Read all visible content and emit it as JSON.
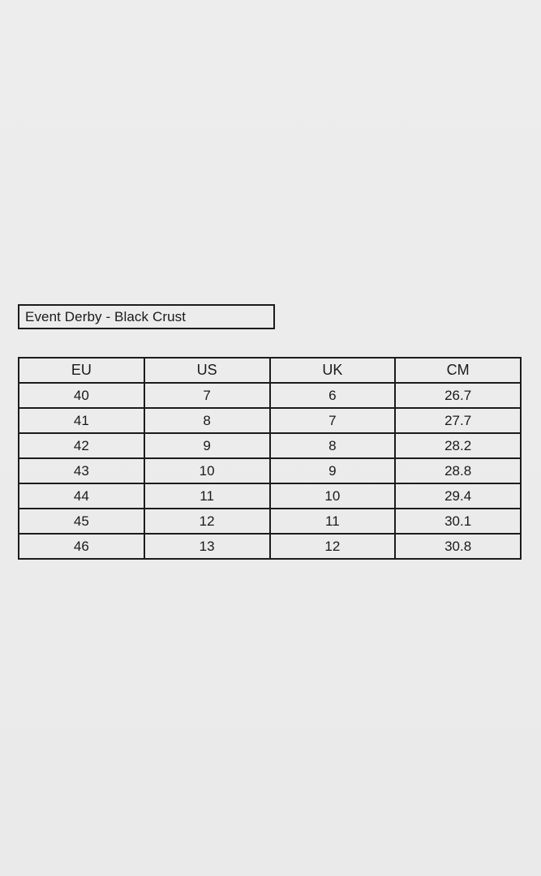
{
  "page": {
    "background_color": "#ececec",
    "border_color": "#1c1c1c",
    "text_color": "#1a1a1a"
  },
  "title_box": {
    "label": "Event Derby - Black Crust"
  },
  "chart_data": {
    "type": "table",
    "title": "Event Derby - Black Crust",
    "columns": [
      "EU",
      "US",
      "UK",
      "CM"
    ],
    "rows": [
      [
        "40",
        "7",
        "6",
        "26.7"
      ],
      [
        "41",
        "8",
        "7",
        "27.7"
      ],
      [
        "42",
        "9",
        "8",
        "28.2"
      ],
      [
        "43",
        "10",
        "9",
        "28.8"
      ],
      [
        "44",
        "11",
        "10",
        "29.4"
      ],
      [
        "45",
        "12",
        "11",
        "30.1"
      ],
      [
        "46",
        "13",
        "12",
        "30.8"
      ]
    ]
  }
}
